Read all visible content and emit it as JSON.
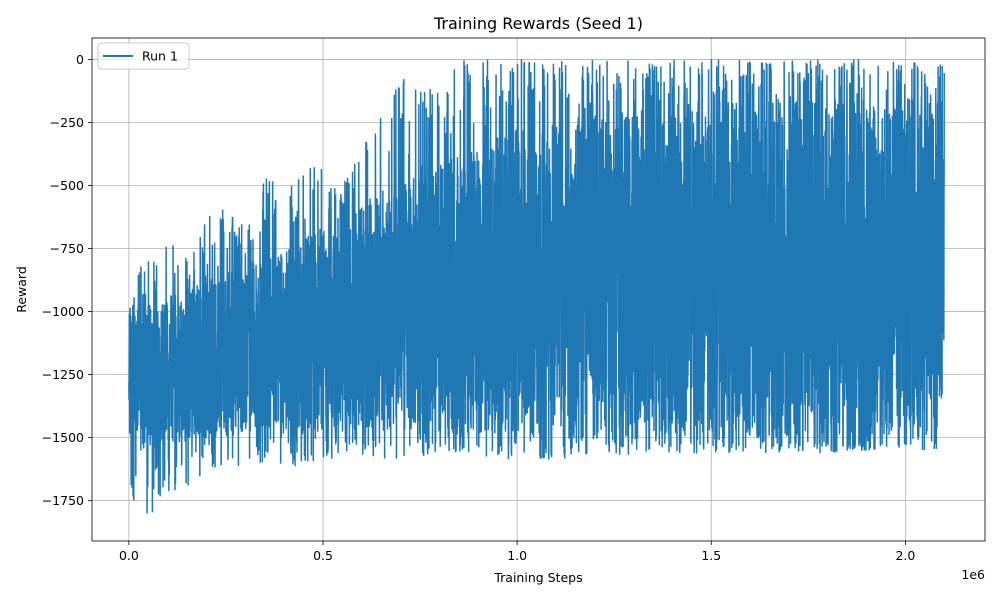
{
  "chart_data": {
    "type": "line",
    "title": "Training Rewards (Seed 1)",
    "xlabel": "Training Steps",
    "ylabel": "Reward",
    "x_offset_label": "1e6",
    "xlim": [
      -95000,
      2205000
    ],
    "ylim": [
      -1910,
      85
    ],
    "x_ticks": [
      0,
      0.5,
      1.0,
      1.5,
      2.0
    ],
    "x_tick_labels": [
      "0.0",
      "0.5",
      "1.0",
      "1.5",
      "2.0"
    ],
    "y_ticks": [
      0,
      -250,
      -500,
      -750,
      -1000,
      -1250,
      -1500,
      -1750
    ],
    "y_tick_labels": [
      "0",
      "−250",
      "−500",
      "−750",
      "−1000",
      "−1250",
      "−1500",
      "−1750"
    ],
    "grid": true,
    "legend_position": "top-left",
    "series": [
      {
        "name": "Run 1",
        "color": "#1f77b4",
        "x_range": [
          0,
          2100000
        ],
        "envelope": [
          {
            "x": 0,
            "max": -980,
            "min": -1690
          },
          {
            "x": 25000,
            "max": -820,
            "min": -1810
          },
          {
            "x": 60000,
            "max": -780,
            "min": -1800
          },
          {
            "x": 90000,
            "max": -630,
            "min": -1740
          },
          {
            "x": 150000,
            "max": -780,
            "min": -1700
          },
          {
            "x": 215000,
            "max": -570,
            "min": -1620
          },
          {
            "x": 300000,
            "max": -660,
            "min": -1610
          },
          {
            "x": 370000,
            "max": -410,
            "min": -1600
          },
          {
            "x": 420000,
            "max": -490,
            "min": -1620
          },
          {
            "x": 485000,
            "max": -405,
            "min": -1590
          },
          {
            "x": 550000,
            "max": -500,
            "min": -1580
          },
          {
            "x": 620000,
            "max": -265,
            "min": -1570
          },
          {
            "x": 680000,
            "max": -140,
            "min": -1600
          },
          {
            "x": 720000,
            "max": 0,
            "min": -1590
          },
          {
            "x": 800000,
            "max": -140,
            "min": -1560
          },
          {
            "x": 850000,
            "max": 0,
            "min": -1560
          },
          {
            "x": 1000000,
            "max": 0,
            "min": -1600
          },
          {
            "x": 1200000,
            "max": 0,
            "min": -1570
          },
          {
            "x": 1500000,
            "max": 0,
            "min": -1560
          },
          {
            "x": 1800000,
            "max": 0,
            "min": -1560
          },
          {
            "x": 2000000,
            "max": 0,
            "min": -1540
          },
          {
            "x": 2100000,
            "max": 0,
            "min": -1560
          }
        ],
        "typical": [
          {
            "x": 0,
            "hi": -1000,
            "lo": -1560
          },
          {
            "x": 200000,
            "hi": -880,
            "lo": -1500
          },
          {
            "x": 400000,
            "hi": -760,
            "lo": -1480
          },
          {
            "x": 600000,
            "hi": -560,
            "lo": -1480
          },
          {
            "x": 800000,
            "hi": -420,
            "lo": -1490
          },
          {
            "x": 1000000,
            "hi": -260,
            "lo": -1500
          },
          {
            "x": 1400000,
            "hi": -170,
            "lo": -1510
          },
          {
            "x": 2100000,
            "hi": -140,
            "lo": -1510
          }
        ]
      }
    ]
  }
}
